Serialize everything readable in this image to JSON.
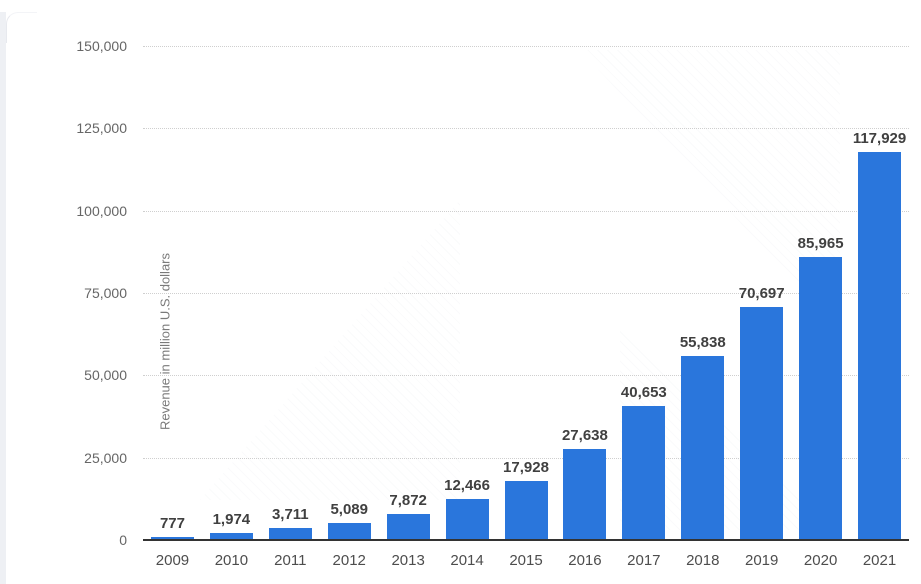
{
  "chart_data": {
    "type": "bar",
    "title": "",
    "ylabel": "Revenue in million U.S. dollars",
    "xlabel": "",
    "categories": [
      "2009",
      "2010",
      "2011",
      "2012",
      "2013",
      "2014",
      "2015",
      "2016",
      "2017",
      "2018",
      "2019",
      "2020",
      "2021"
    ],
    "values": [
      777,
      1974,
      3711,
      5089,
      7872,
      12466,
      17928,
      27638,
      40653,
      55838,
      70697,
      85965,
      117929
    ],
    "value_labels": [
      "777",
      "1,974",
      "3,711",
      "5,089",
      "7,872",
      "12,466",
      "17,928",
      "27,638",
      "40,653",
      "55,838",
      "70,697",
      "85,965",
      "117,929"
    ],
    "ylim": [
      0,
      150000
    ],
    "ytick_interval": 25000,
    "ytick_labels": [
      "0",
      "25,000",
      "50,000",
      "75,000",
      "100,000",
      "125,000",
      "150,000"
    ],
    "grid": "horizontal-dotted",
    "legend": "none",
    "bar_color": "#2a76dc",
    "value_label_color": "#404040",
    "x_tick_color": "#4d4d4d",
    "y_tick_color": "#666666",
    "axis_line_color": "#333333",
    "gridline_color": "#cfcfcf"
  }
}
